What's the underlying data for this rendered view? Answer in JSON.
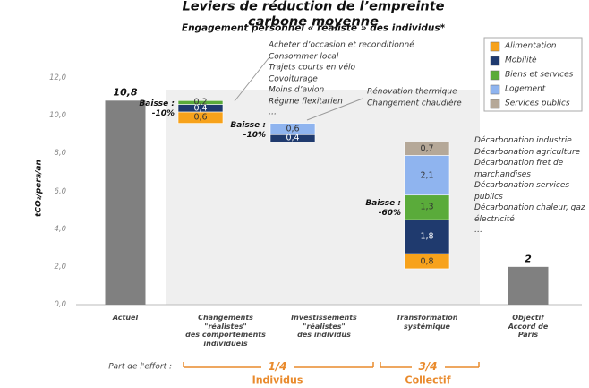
{
  "chart_data": {
    "type": "waterfall",
    "title": "Leviers de réduction de l’empreinte carbone moyenne",
    "subtitle": "Engagement personnel « réaliste » des individus*",
    "y_label": "tCO₂/pers/an",
    "categories": [
      "Actuel",
      "Changements\n\"réalistes\"\ndes comportements\nindividuels",
      "Investissements\n\"réalistes\"\ndes individus",
      "Transformation\nsystémique",
      "Objectif\nAccord de Paris"
    ],
    "totals": [
      10.8,
      null,
      null,
      null,
      2
    ],
    "total_labels": [
      "10,8",
      null,
      null,
      null,
      "2"
    ],
    "total_color": "#808080",
    "series": [
      {
        "name": "Alimentation",
        "color": "#f7a21b",
        "values": [
          null,
          0.6,
          null,
          0.8,
          null
        ],
        "value_labels": [
          null,
          "0,6",
          null,
          "0,8",
          null
        ]
      },
      {
        "name": "Mobilité",
        "color": "#1f3a6e",
        "values": [
          null,
          0.4,
          0.4,
          1.8,
          null
        ],
        "value_labels": [
          null,
          "0,4",
          "0,4",
          "1,8",
          null
        ]
      },
      {
        "name": "Biens et services",
        "color": "#5aab3a",
        "values": [
          null,
          0.2,
          null,
          1.3,
          null
        ],
        "value_labels": [
          null,
          "0,2",
          null,
          "1,3",
          null
        ]
      },
      {
        "name": "Logement",
        "color": "#8fb4ef",
        "values": [
          null,
          null,
          0.6,
          2.1,
          null
        ],
        "value_labels": [
          null,
          null,
          "0,6",
          "2,1",
          null
        ]
      },
      {
        "name": "Services publics",
        "color": "#b5a898",
        "values": [
          null,
          null,
          null,
          0.7,
          null
        ],
        "value_labels": [
          null,
          null,
          null,
          "0,7",
          null
        ]
      }
    ],
    "drop_labels": [
      null,
      "Baisse :\n-10%",
      "Baisse :\n-10%",
      "Baisse :\n-60%",
      null
    ],
    "step_notes": [
      null,
      "Acheter d’occasion et reconditionné\nConsommer local\nTrajets courts en vélo\nCovoiturage\nMoins d’avion\nRégime flexitarien\n…",
      "Rénovation thermique\nChangement chaudière",
      "Décarbonation industrie\nDécarbonation agriculture\nDécarbonation fret de\nmarchandises\nDécarbonation services\npublics\nDécarbonation chaleur, gaz\nélectricité\n…",
      null
    ],
    "ylim": [
      0,
      12
    ],
    "yticks": [
      {
        "value": 0,
        "label": "0,0"
      },
      {
        "value": 2,
        "label": "2,0"
      },
      {
        "value": 4,
        "label": "4,0"
      },
      {
        "value": 6,
        "label": "6,0"
      },
      {
        "value": 8,
        "label": "8,0"
      },
      {
        "value": 10,
        "label": "10,0"
      },
      {
        "value": 12,
        "label": "12,0"
      }
    ],
    "grid": false,
    "effort": {
      "label": "Part de l'effort :",
      "groups": [
        {
          "share": "1/4",
          "name": "Individus"
        },
        {
          "share": "3/4",
          "name": "Collectif"
        }
      ]
    }
  }
}
